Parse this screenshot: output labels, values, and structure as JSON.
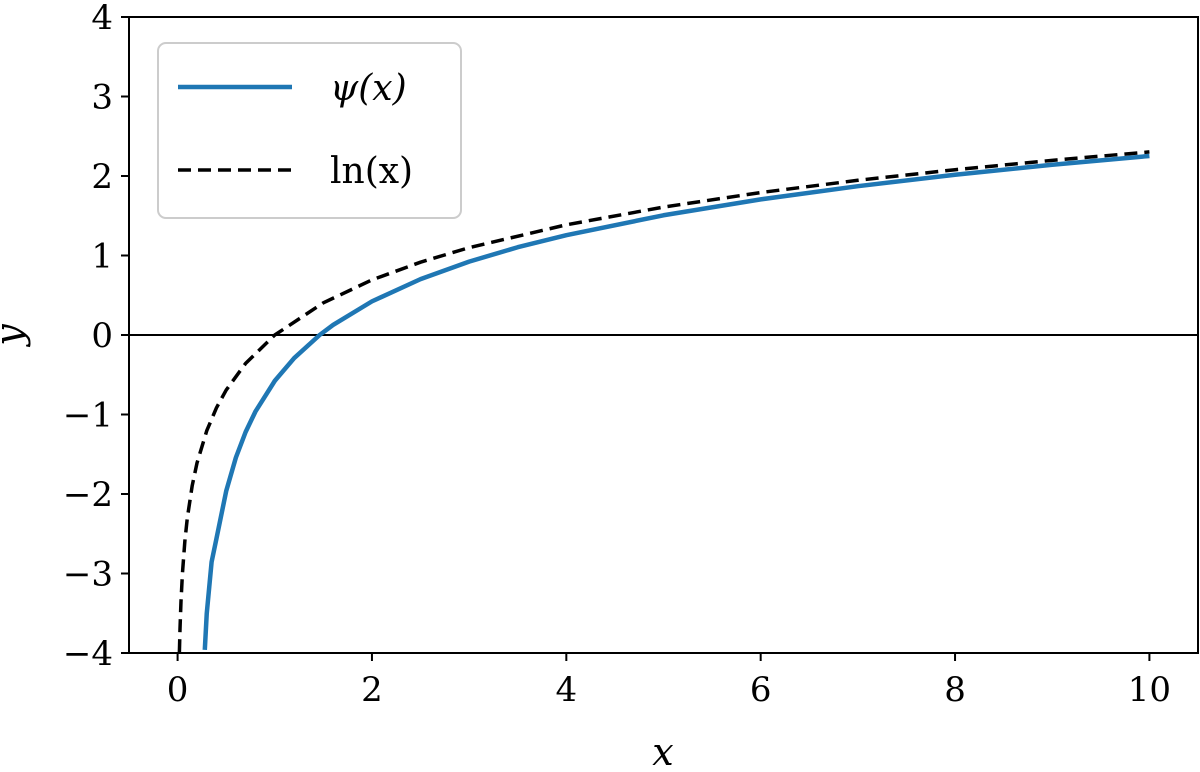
{
  "chart_data": {
    "type": "line",
    "xlabel": "x",
    "ylabel": "y",
    "xlim": [
      -0.5,
      10.5
    ],
    "ylim": [
      -4,
      4
    ],
    "xticks": [
      0,
      2,
      4,
      6,
      8,
      10
    ],
    "xtick_labels": [
      "0",
      "2",
      "4",
      "6",
      "8",
      "10"
    ],
    "yticks": [
      -4,
      -3,
      -2,
      -1,
      0,
      1,
      2,
      3,
      4
    ],
    "ytick_labels": [
      "−4",
      "−3",
      "−2",
      "−1",
      "0",
      "1",
      "2",
      "3",
      "4"
    ],
    "grid": false,
    "legend_position": "top-left",
    "reference_lines": [
      {
        "orientation": "horizontal",
        "y": 0,
        "color": "#000000"
      }
    ],
    "series": [
      {
        "name": "ψ(x)",
        "color": "#1f77b4",
        "style": "solid",
        "x": [
          0.28,
          0.3,
          0.35,
          0.4,
          0.5,
          0.6,
          0.7,
          0.8,
          1.0,
          1.2,
          1.4616,
          1.6,
          2.0,
          2.5,
          3.0,
          3.5,
          4.0,
          5.0,
          6.0,
          7.0,
          8.0,
          9.0,
          10.0
        ],
        "y": [
          -3.96,
          -3.502,
          -2.855,
          -2.561,
          -1.964,
          -1.541,
          -1.22,
          -0.965,
          -0.577,
          -0.29,
          0.0,
          0.126,
          0.423,
          0.703,
          0.923,
          1.104,
          1.256,
          1.506,
          1.706,
          1.872,
          2.016,
          2.141,
          2.252
        ]
      },
      {
        "name": "ln(x)",
        "color": "#000000",
        "style": "dashed",
        "x": [
          0.0185,
          0.025,
          0.035,
          0.05,
          0.075,
          0.1,
          0.15,
          0.2,
          0.3,
          0.4,
          0.5,
          0.7,
          1.0,
          1.5,
          2.0,
          2.5,
          3.0,
          4.0,
          5.0,
          6.0,
          7.0,
          8.0,
          9.0,
          10.0
        ],
        "y": [
          -3.99,
          -3.689,
          -3.352,
          -2.996,
          -2.59,
          -2.303,
          -1.897,
          -1.609,
          -1.204,
          -0.916,
          -0.693,
          -0.357,
          0.0,
          0.405,
          0.693,
          0.916,
          1.099,
          1.386,
          1.609,
          1.792,
          1.946,
          2.079,
          2.197,
          2.303
        ]
      }
    ]
  }
}
